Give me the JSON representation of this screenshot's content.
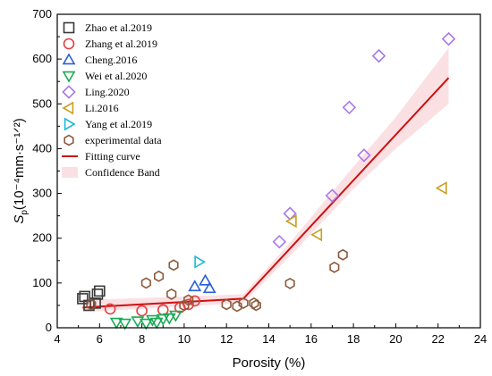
{
  "chart_data": {
    "type": "scatter",
    "xlabel": "Porosity (%)",
    "ylabel_main": "S",
    "ylabel_sub": "p",
    "ylabel_unit": "(10⁻⁴mm·s⁻¹ᐟ²)",
    "xlim": [
      4,
      24
    ],
    "ylim": [
      0,
      700
    ],
    "xticks": [
      "4",
      "6",
      "8",
      "10",
      "12",
      "14",
      "16",
      "18",
      "20",
      "22",
      "24"
    ],
    "yticks": [
      "0",
      "100",
      "200",
      "300",
      "400",
      "500",
      "600",
      "700"
    ],
    "grid": false,
    "legend_position": "top-left",
    "series": [
      {
        "name": "Zhao et al.2019",
        "marker": "square",
        "color": "#3a3a3a",
        "points": [
          [
            5.2,
            65
          ],
          [
            5.3,
            70
          ],
          [
            5.9,
            75
          ],
          [
            6.0,
            82
          ],
          [
            5.5,
            50
          ],
          [
            5.8,
            55
          ]
        ]
      },
      {
        "name": "Zhang  et al.2019",
        "marker": "circle",
        "color": "#e04040",
        "points": [
          [
            6.5,
            42
          ],
          [
            8.0,
            38
          ],
          [
            9.0,
            40
          ],
          [
            9.8,
            45
          ],
          [
            10.2,
            52
          ],
          [
            10.5,
            60
          ]
        ]
      },
      {
        "name": "Cheng.2016",
        "marker": "triangle-up",
        "color": "#2a5fd6",
        "points": [
          [
            10.5,
            92
          ],
          [
            11.0,
            105
          ],
          [
            11.2,
            88
          ]
        ]
      },
      {
        "name": "Wei et al.2020",
        "marker": "triangle-down",
        "color": "#1aaa55",
        "points": [
          [
            6.8,
            12
          ],
          [
            7.2,
            10
          ],
          [
            7.8,
            15
          ],
          [
            8.2,
            10
          ],
          [
            8.5,
            18
          ],
          [
            8.7,
            12
          ],
          [
            9.0,
            20
          ],
          [
            9.3,
            22
          ],
          [
            9.6,
            28
          ]
        ]
      },
      {
        "name": "Ling.2020",
        "marker": "diamond",
        "color": "#a878e8",
        "points": [
          [
            14.5,
            192
          ],
          [
            15.0,
            255
          ],
          [
            17.0,
            295
          ],
          [
            17.8,
            492
          ],
          [
            18.5,
            385
          ],
          [
            19.2,
            607
          ],
          [
            22.5,
            645
          ]
        ]
      },
      {
        "name": "Li.2016",
        "marker": "triangle-left",
        "color": "#c8a020",
        "points": [
          [
            15.1,
            238
          ],
          [
            16.3,
            208
          ],
          [
            22.2,
            312
          ]
        ]
      },
      {
        "name": "Yang et al.2019",
        "marker": "triangle-right",
        "color": "#20b8d8",
        "points": [
          [
            10.7,
            147
          ]
        ]
      },
      {
        "name": "experimental data",
        "marker": "hexagon",
        "color": "#8b5a3c",
        "points": [
          [
            5.6,
            52
          ],
          [
            8.2,
            100
          ],
          [
            8.8,
            115
          ],
          [
            9.5,
            140
          ],
          [
            9.4,
            75
          ],
          [
            10.0,
            50
          ],
          [
            10.2,
            62
          ],
          [
            12.0,
            52
          ],
          [
            12.5,
            48
          ],
          [
            12.8,
            55
          ],
          [
            13.3,
            55
          ],
          [
            13.4,
            50
          ],
          [
            15.0,
            99
          ],
          [
            17.1,
            135
          ],
          [
            17.5,
            163
          ]
        ]
      }
    ],
    "fit": {
      "name": "Fitting curve",
      "color": "#cc1010",
      "points": [
        [
          5.2,
          45
        ],
        [
          12.8,
          65
        ],
        [
          22.5,
          558
        ]
      ]
    },
    "band": {
      "name": "Confidence Band",
      "color": "#f4a6b0",
      "lower": [
        [
          5.2,
          35
        ],
        [
          9,
          45
        ],
        [
          12.8,
          55
        ],
        [
          15,
          160
        ],
        [
          18,
          310
        ],
        [
          20,
          400
        ],
        [
          22.5,
          500
        ]
      ],
      "upper": [
        [
          5.2,
          62
        ],
        [
          9,
          68
        ],
        [
          12.8,
          75
        ],
        [
          15,
          190
        ],
        [
          18,
          360
        ],
        [
          20,
          470
        ],
        [
          22.5,
          625
        ]
      ]
    }
  }
}
